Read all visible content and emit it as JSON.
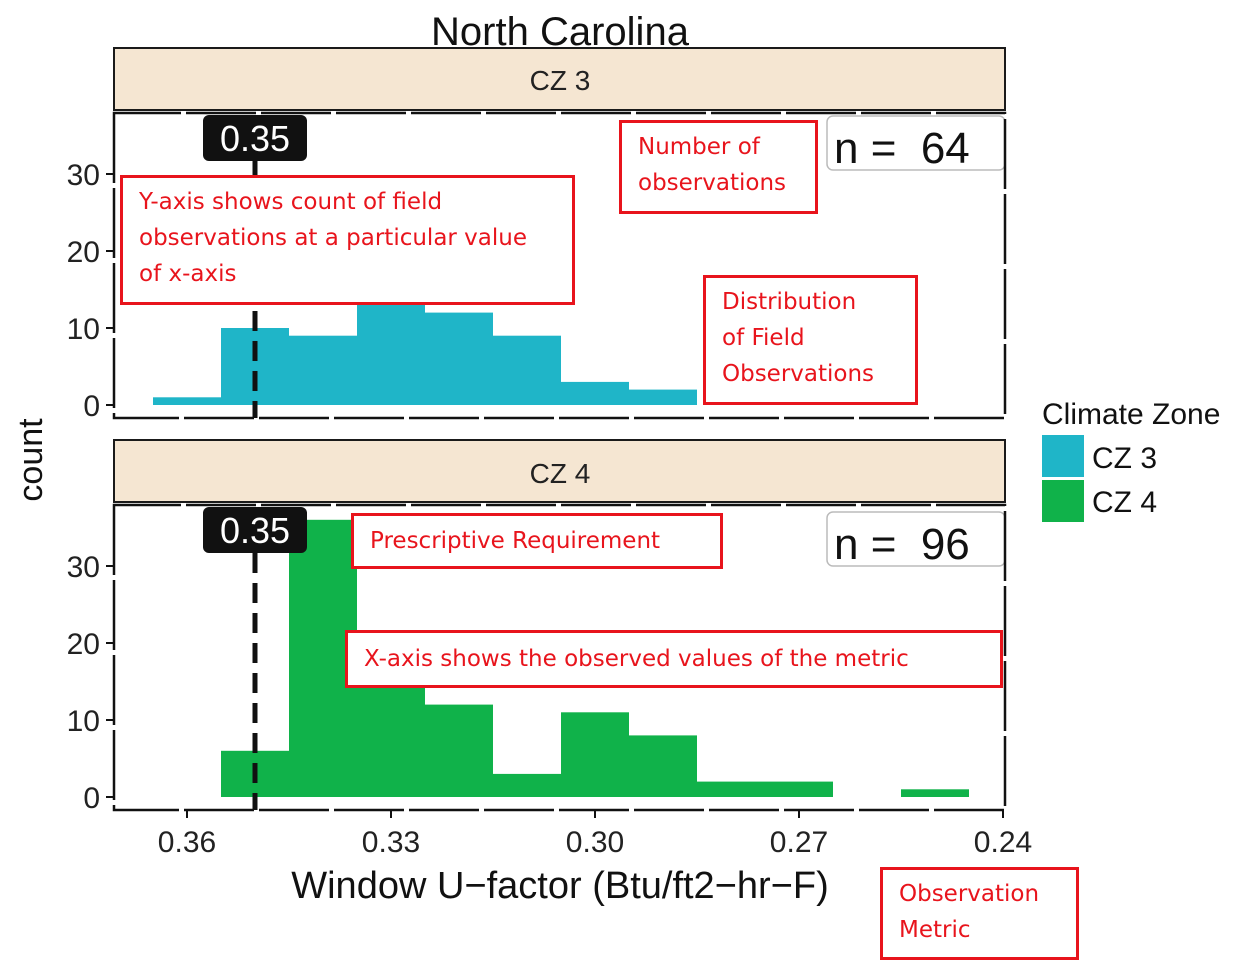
{
  "chart_data": {
    "type": "bar",
    "title": "North Carolina",
    "xlabel": "Window U−factor (Btu/ft2−hr−F)",
    "ylabel": "count",
    "x_reversed": true,
    "x_ticks": [
      0.36,
      0.33,
      0.3,
      0.27,
      0.24
    ],
    "x_tick_labels": [
      "0.36",
      "0.33",
      "0.30",
      "0.27",
      "0.24"
    ],
    "xlim": [
      0.24,
      0.3675
    ],
    "ylim": [
      0,
      38
    ],
    "y_ticks": [
      0,
      10,
      20,
      30
    ],
    "bin_width": 0.01,
    "legend": {
      "title": "Climate Zone",
      "placement": "right",
      "items": [
        {
          "label": "CZ 3",
          "color": "#1fb5c8"
        },
        {
          "label": "CZ 4",
          "color": "#10b24a"
        }
      ]
    },
    "panels": [
      {
        "label": "CZ 3",
        "color": "#1fb5c8",
        "n_label": "n =  64",
        "requirement_value": 0.35,
        "requirement_label": "0.35",
        "bins": [
          {
            "x": 0.36,
            "count": 1
          },
          {
            "x": 0.35,
            "count": 10
          },
          {
            "x": 0.34,
            "count": 9
          },
          {
            "x": 0.33,
            "count": 18
          },
          {
            "x": 0.32,
            "count": 12
          },
          {
            "x": 0.31,
            "count": 9
          },
          {
            "x": 0.3,
            "count": 3
          },
          {
            "x": 0.29,
            "count": 2
          }
        ]
      },
      {
        "label": "CZ 4",
        "color": "#10b24a",
        "n_label": "n =  96",
        "requirement_value": 0.35,
        "requirement_label": "0.35",
        "bins": [
          {
            "x": 0.35,
            "count": 6
          },
          {
            "x": 0.34,
            "count": 36
          },
          {
            "x": 0.33,
            "count": 15
          },
          {
            "x": 0.32,
            "count": 12
          },
          {
            "x": 0.31,
            "count": 3
          },
          {
            "x": 0.3,
            "count": 11
          },
          {
            "x": 0.29,
            "count": 8
          },
          {
            "x": 0.28,
            "count": 2
          },
          {
            "x": 0.27,
            "count": 2
          },
          {
            "x": 0.25,
            "count": 1
          }
        ]
      }
    ]
  },
  "annotations": {
    "yaxis_note": [
      "Y-axis shows count of field",
      "observations at a particular value",
      "of x-axis"
    ],
    "num_obs_note": [
      "Number of",
      "observations"
    ],
    "distribution_note": [
      "Distribution",
      "of Field",
      "Observations"
    ],
    "requirement_note": [
      "Prescriptive Requirement"
    ],
    "xaxis_note": [
      "X-axis shows the observed values of the metric"
    ],
    "metric_note": [
      "Observation",
      "Metric"
    ]
  }
}
